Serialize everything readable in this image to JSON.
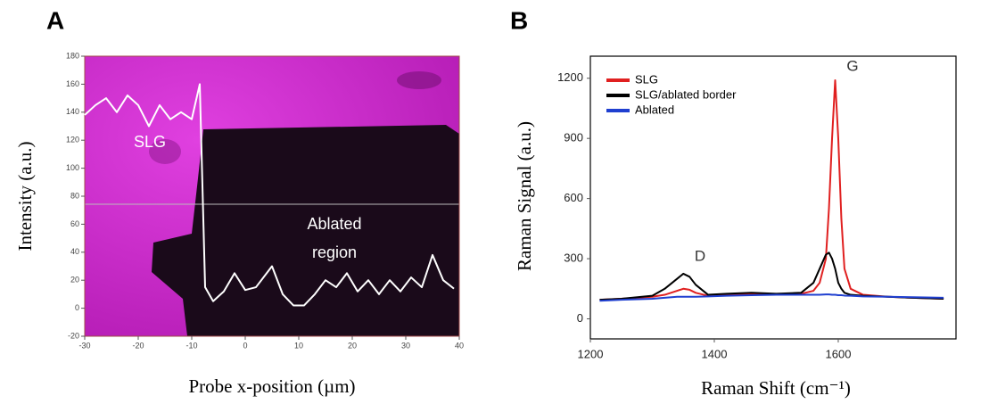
{
  "chart_data": [
    {
      "type": "line",
      "panel": "A",
      "x_label": "Probe x-position (µm)",
      "y_label": "Intensity (a.u.)",
      "annotations": [
        "SLG",
        "Ablated",
        "region"
      ],
      "x": [
        -30,
        -28,
        -26,
        -24,
        -22,
        -20,
        -18,
        -16,
        -14,
        -12,
        -10,
        -8.5,
        -7.5,
        -6,
        -4,
        -2,
        0,
        2,
        4,
        5,
        7,
        9,
        11,
        13,
        15,
        17,
        19,
        21,
        23,
        25,
        27,
        29,
        31,
        33,
        35,
        37,
        39
      ],
      "series": [
        {
          "color": "#ffffff",
          "values": [
            138,
            145,
            150,
            140,
            152,
            145,
            130,
            145,
            135,
            140,
            135,
            160,
            15,
            5,
            12,
            25,
            13,
            15,
            25,
            30,
            10,
            2,
            2,
            10,
            20,
            15,
            25,
            12,
            20,
            10,
            20,
            12,
            22,
            15,
            38,
            20,
            14
          ]
        }
      ],
      "xlim": [
        -30,
        40
      ],
      "xticks": [
        -30,
        -20,
        -10,
        0,
        10,
        20,
        30,
        40
      ],
      "ylim": [
        -20,
        180
      ],
      "yticks": [
        -20,
        0,
        20,
        40,
        60,
        80,
        100,
        120,
        140,
        160,
        180
      ]
    },
    {
      "type": "line",
      "panel": "B",
      "x_label": "Raman Shift (cm⁻¹)",
      "y_label": "Raman Signal (a.u.)",
      "annotations": [
        "D",
        "G"
      ],
      "legend": "upper left",
      "x": [
        1215,
        1250,
        1300,
        1320,
        1340,
        1350,
        1360,
        1370,
        1390,
        1420,
        1460,
        1500,
        1540,
        1560,
        1570,
        1580,
        1585,
        1590,
        1595,
        1600,
        1605,
        1610,
        1620,
        1640,
        1680,
        1720,
        1770
      ],
      "series": [
        {
          "name": "SLG",
          "color": "#e02020",
          "values": [
            95,
            100,
            110,
            120,
            140,
            150,
            145,
            130,
            115,
            120,
            125,
            120,
            125,
            140,
            180,
            300,
            550,
            900,
            1190,
            900,
            500,
            250,
            150,
            120,
            110,
            105,
            100
          ]
        },
        {
          "name": "SLG/ablated border",
          "color": "#000000",
          "values": [
            95,
            100,
            115,
            150,
            200,
            225,
            210,
            170,
            120,
            125,
            130,
            125,
            130,
            180,
            250,
            320,
            330,
            300,
            250,
            180,
            150,
            130,
            120,
            115,
            110,
            105,
            100
          ]
        },
        {
          "name": "Ablated",
          "color": "#1f3fd0",
          "values": [
            90,
            95,
            100,
            105,
            110,
            110,
            110,
            110,
            112,
            115,
            118,
            120,
            120,
            120,
            120,
            122,
            122,
            120,
            120,
            118,
            118,
            116,
            115,
            112,
            110,
            108,
            105
          ]
        }
      ],
      "xlim": [
        1200,
        1790
      ],
      "xticks": [
        1200,
        1400,
        1600
      ],
      "ylim": [
        -100,
        1310
      ],
      "yticks": [
        0,
        300,
        600,
        900,
        1200
      ]
    }
  ]
}
